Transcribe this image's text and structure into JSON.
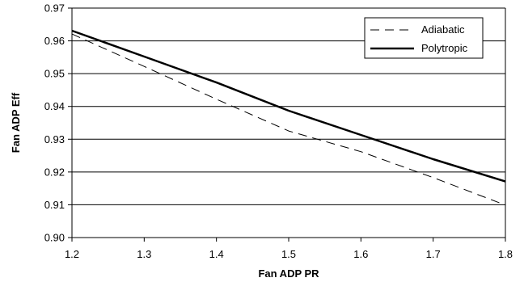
{
  "chart_data": {
    "type": "line",
    "title": "",
    "xlabel": "Fan ADP PR",
    "ylabel": "Fan ADP Eff",
    "xlim": [
      1.2,
      1.8
    ],
    "ylim": [
      0.9,
      0.97
    ],
    "x_ticks": [
      1.2,
      1.3,
      1.4,
      1.5,
      1.6,
      1.7,
      1.8
    ],
    "x_tick_labels": [
      "1.2",
      "1.3",
      "1.4",
      "1.5",
      "1.6",
      "1.7",
      "1.8"
    ],
    "y_ticks": [
      0.9,
      0.91,
      0.92,
      0.93,
      0.94,
      0.95,
      0.96,
      0.97
    ],
    "y_tick_labels": [
      "0.90",
      "0.91",
      "0.92",
      "0.93",
      "0.94",
      "0.95",
      "0.96",
      "0.97"
    ],
    "grid": "horizontal",
    "legend_position": "top-right",
    "series": [
      {
        "name": "Adiabatic",
        "style": "dashed",
        "color": "#000000",
        "x": [
          1.2,
          1.3,
          1.4,
          1.5,
          1.6,
          1.7,
          1.8
        ],
        "y": [
          0.9621,
          0.9522,
          0.9422,
          0.9325,
          0.9262,
          0.9183,
          0.9099
        ]
      },
      {
        "name": "Polytropic",
        "style": "solid",
        "color": "#000000",
        "x": [
          1.2,
          1.3,
          1.4,
          1.5,
          1.6,
          1.7,
          1.8
        ],
        "y": [
          0.9631,
          0.9552,
          0.9473,
          0.9387,
          0.9313,
          0.9239,
          0.9171
        ]
      }
    ]
  }
}
